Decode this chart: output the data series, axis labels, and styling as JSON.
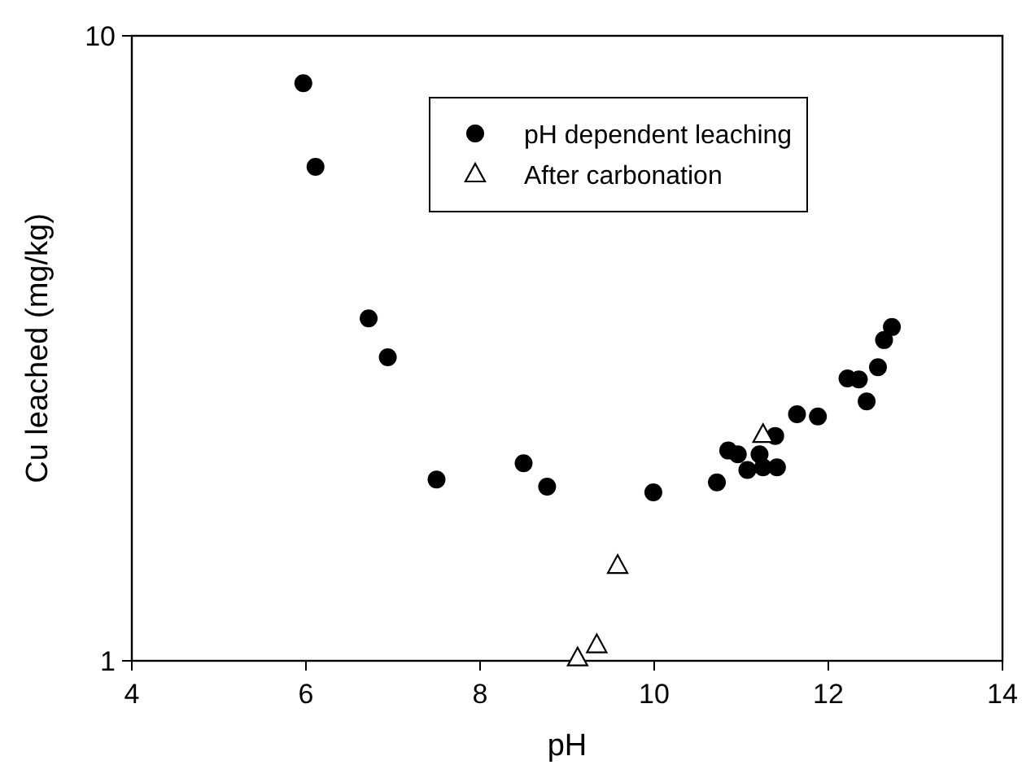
{
  "chart_data": {
    "type": "scatter",
    "xlabel": "pH",
    "ylabel": "Cu leached (mg/kg)",
    "xlim": [
      4,
      14
    ],
    "ylim": [
      1,
      10
    ],
    "xticks": [
      4,
      6,
      8,
      10,
      12,
      14
    ],
    "yticks": [
      1,
      10
    ],
    "log": "y",
    "legend": "top right",
    "grid": false,
    "series": [
      {
        "name": "pH dependent leaching",
        "color": "#000000",
        "marker": "circle",
        "x": [
          5.97,
          6.11,
          6.72,
          6.94,
          7.5,
          8.5,
          8.77,
          9.99,
          10.72,
          10.85,
          10.96,
          11.07,
          11.21,
          11.25,
          11.41,
          11.39,
          11.64,
          11.88,
          12.22,
          12.35,
          12.44,
          12.57,
          12.64,
          12.73
        ],
        "values": [
          8.4,
          6.17,
          3.53,
          3.06,
          1.95,
          2.07,
          1.9,
          1.86,
          1.93,
          2.17,
          2.14,
          2.02,
          2.14,
          2.04,
          2.04,
          2.29,
          2.48,
          2.46,
          2.83,
          2.82,
          2.6,
          2.95,
          3.26,
          3.42
        ]
      },
      {
        "name": "After carbonation",
        "color": "#000000",
        "marker": "triangle",
        "x": [
          11.25,
          9.58,
          9.34,
          9.12
        ],
        "values": [
          2.3,
          1.42,
          1.06,
          1.01
        ]
      }
    ]
  }
}
